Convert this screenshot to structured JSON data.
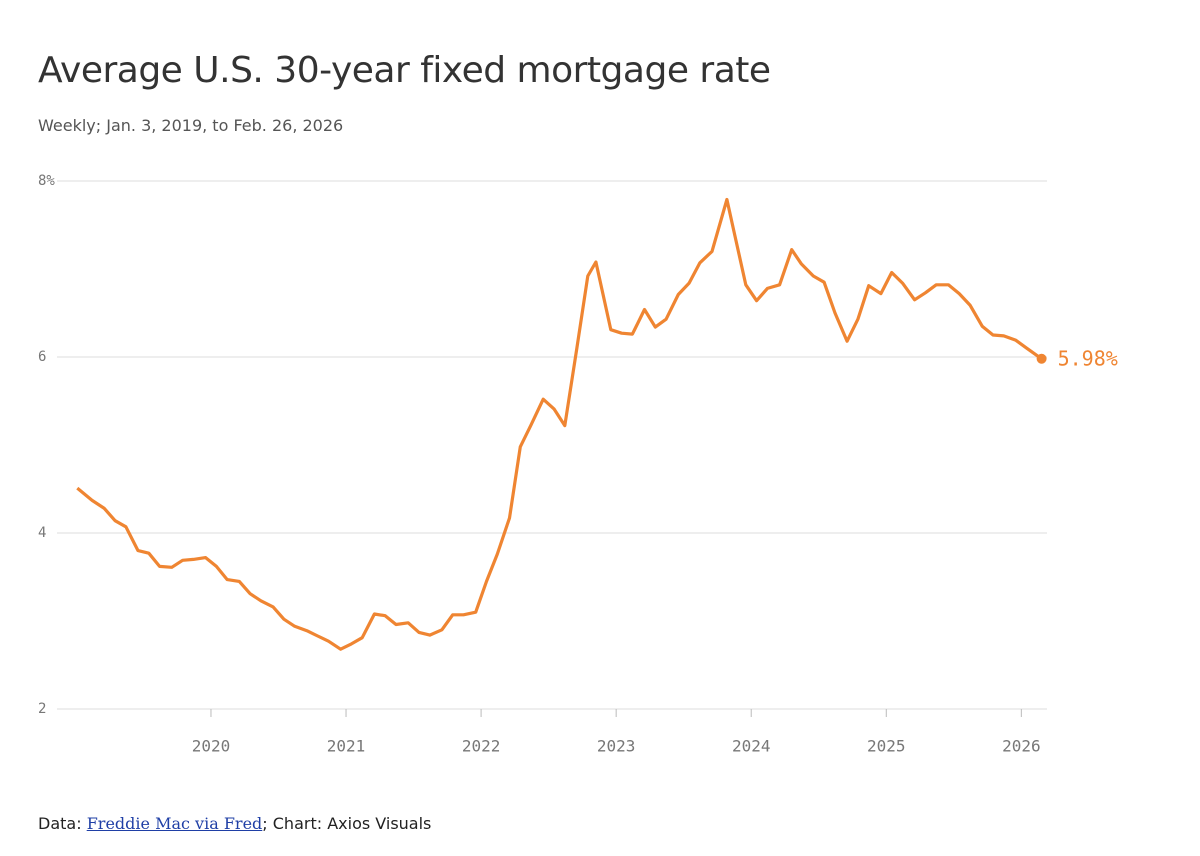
{
  "chart_data": {
    "type": "line",
    "title": "Average U.S. 30-year fixed mortgage rate",
    "subtitle": "Weekly; Jan. 3, 2019, to Feb. 26, 2026",
    "source": {
      "prefix": "Data:",
      "link": "Freddie Mac via Fred",
      "suffix": "; Chart: Axios Visuals"
    },
    "xlim": [
      2018.86,
      2026.19
    ],
    "xticks": [
      2020,
      2021,
      2022,
      2023,
      2024,
      2025,
      2026
    ],
    "ylim": [
      2,
      8
    ],
    "yticks": [
      2,
      4,
      6,
      {
        "value": 8,
        "label": "8%"
      }
    ],
    "grid": true,
    "color": "#ef8532",
    "end_label": "5.98%",
    "x": [
      2019.01,
      2019.12,
      2019.21,
      2019.29,
      2019.37,
      2019.46,
      2019.54,
      2019.62,
      2019.71,
      2019.79,
      2019.87,
      2019.96,
      2020.04,
      2020.12,
      2020.21,
      2020.29,
      2020.37,
      2020.46,
      2020.54,
      2020.62,
      2020.71,
      2020.79,
      2020.87,
      2020.96,
      2021.04,
      2021.12,
      2021.21,
      2021.29,
      2021.37,
      2021.46,
      2021.54,
      2021.62,
      2021.71,
      2021.79,
      2021.87,
      2021.96,
      2022.04,
      2022.12,
      2022.21,
      2022.29,
      2022.37,
      2022.46,
      2022.54,
      2022.62,
      2022.71,
      2022.79,
      2022.85,
      2022.96,
      2023.04,
      2023.12,
      2023.21,
      2023.29,
      2023.37,
      2023.46,
      2023.54,
      2023.62,
      2023.71,
      2023.82,
      2023.87,
      2023.96,
      2024.04,
      2024.12,
      2024.21,
      2024.3,
      2024.37,
      2024.46,
      2024.54,
      2024.62,
      2024.71,
      2024.79,
      2024.87,
      2024.96,
      2025.04,
      2025.12,
      2025.21,
      2025.29,
      2025.37,
      2025.46,
      2025.54,
      2025.62,
      2025.71,
      2025.79,
      2025.87,
      2025.96,
      2026.04,
      2026.15
    ],
    "series": [
      {
        "name": "30-year fixed",
        "values": [
          4.51,
          4.37,
          4.28,
          4.14,
          4.07,
          3.8,
          3.77,
          3.62,
          3.61,
          3.69,
          3.7,
          3.72,
          3.62,
          3.47,
          3.45,
          3.31,
          3.23,
          3.16,
          3.02,
          2.94,
          2.89,
          2.83,
          2.77,
          2.68,
          2.74,
          2.81,
          3.08,
          3.06,
          2.96,
          2.98,
          2.87,
          2.84,
          2.9,
          3.07,
          3.07,
          3.1,
          3.45,
          3.76,
          4.17,
          4.98,
          5.23,
          5.52,
          5.41,
          5.22,
          6.11,
          6.92,
          7.08,
          6.31,
          6.27,
          6.26,
          6.54,
          6.34,
          6.43,
          6.71,
          6.84,
          7.07,
          7.2,
          7.79,
          7.44,
          6.82,
          6.64,
          6.78,
          6.82,
          7.22,
          7.06,
          6.92,
          6.85,
          6.5,
          6.18,
          6.43,
          6.81,
          6.72,
          6.96,
          6.84,
          6.65,
          6.73,
          6.82,
          6.82,
          6.72,
          6.59,
          6.35,
          6.25,
          6.24,
          6.19,
          6.1,
          5.98
        ]
      }
    ]
  }
}
